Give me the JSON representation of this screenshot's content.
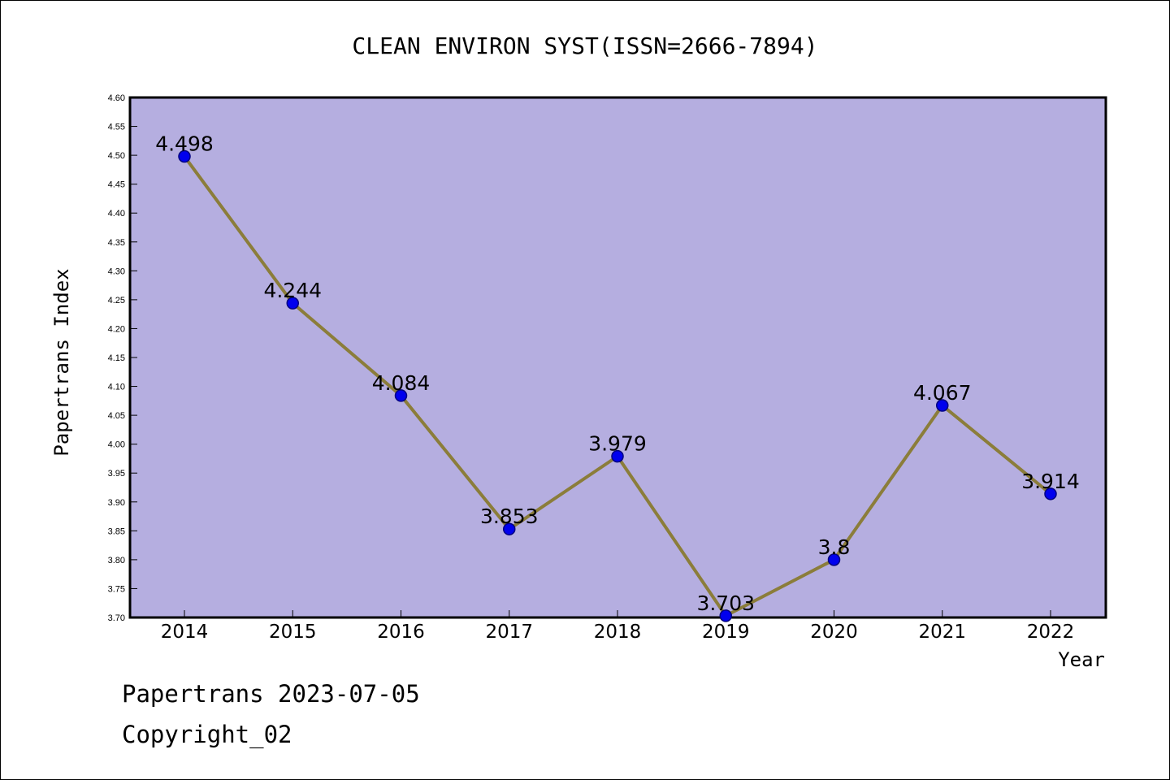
{
  "chart_data": {
    "type": "line",
    "title": "CLEAN ENVIRON SYST(ISSN=2666-7894)",
    "xlabel": "Year",
    "ylabel": "Papertrans Index",
    "categories": [
      "2014",
      "2015",
      "2016",
      "2017",
      "2018",
      "2019",
      "2020",
      "2021",
      "2022"
    ],
    "series": [
      {
        "values": [
          4.498,
          4.244,
          4.084,
          3.853,
          3.979,
          3.703,
          3.8,
          4.067,
          3.914
        ],
        "data_labels": [
          "4.498",
          "4.244",
          "4.084",
          "3.853",
          "3.979",
          "3.703",
          "3.8",
          "4.067",
          "3.914"
        ]
      }
    ],
    "ylim": [
      3.7,
      4.6
    ],
    "yticks": [
      "3.70",
      "3.75",
      "3.80",
      "3.85",
      "3.90",
      "3.95",
      "4.00",
      "4.05",
      "4.10",
      "4.15",
      "4.20",
      "4.25",
      "4.30",
      "4.35",
      "4.40",
      "4.45",
      "4.50",
      "4.55",
      "4.60"
    ],
    "grid": false,
    "legend": "none",
    "colors": {
      "plot_background": "#b5aee0",
      "line": "#8b7d3a",
      "marker": "#0000ee",
      "marker_edge": "#000080"
    }
  },
  "footer": {
    "line1": "Papertrans 2023-07-05",
    "line2": "Copyright_02"
  }
}
